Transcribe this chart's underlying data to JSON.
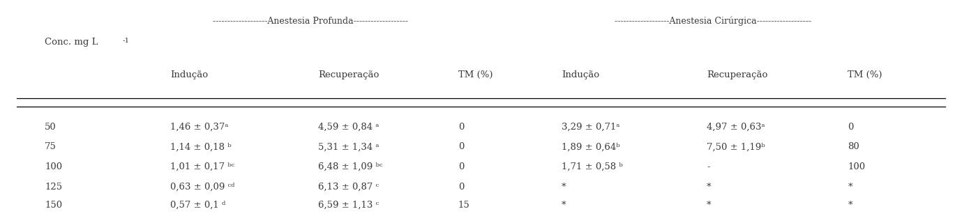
{
  "header_row1_left": "-------------------Anestesia Profunda-------------------",
  "header_row1_right": "-------------------Anestesia Cirúrgica-------------------",
  "conc_label": "Conc. mg L",
  "conc_label_sup": "-1",
  "subheaders": [
    "Indução",
    "Recuperação",
    "TM (%)",
    "Indução",
    "Recuperação",
    "TM (%)"
  ],
  "rows": [
    {
      "conc": "50",
      "prof_inducao": "1,46 ± 0,37ᵃ",
      "prof_recuperacao": "4,59 ± 0,84 ᵃ",
      "prof_tm": "0",
      "cir_inducao": "3,29 ± 0,71ᵃ",
      "cir_recuperacao": "4,97 ± 0,63ᵃ",
      "cir_tm": "0"
    },
    {
      "conc": "75",
      "prof_inducao": "1,14 ± 0,18 ᵇ",
      "prof_recuperacao": "5,31 ± 1,34 ᵃ",
      "prof_tm": "0",
      "cir_inducao": "1,89 ± 0,64ᵇ",
      "cir_recuperacao": "7,50 ± 1,19ᵇ",
      "cir_tm": "80"
    },
    {
      "conc": "100",
      "prof_inducao": "1,01 ± 0,17 ᵇᶜ",
      "prof_recuperacao": "6,48 ± 1,09 ᵇᶜ",
      "prof_tm": "0",
      "cir_inducao": "1,71 ± 0,58 ᵇ",
      "cir_recuperacao": "-",
      "cir_tm": "100"
    },
    {
      "conc": "125",
      "prof_inducao": "0,63 ± 0,09 ᶜᵈ",
      "prof_recuperacao": "6,13 ± 0,87 ᶜ",
      "prof_tm": "0",
      "cir_inducao": "*",
      "cir_recuperacao": "*",
      "cir_tm": "*"
    },
    {
      "conc": "150",
      "prof_inducao": "0,57 ± 0,1 ᵈ",
      "prof_recuperacao": "6,59 ± 1,13 ᶜ",
      "prof_tm": "15",
      "cir_inducao": "*",
      "cir_recuperacao": "*",
      "cir_tm": "*"
    }
  ],
  "text_color": "#3a3a3a",
  "font_size": 9.5
}
